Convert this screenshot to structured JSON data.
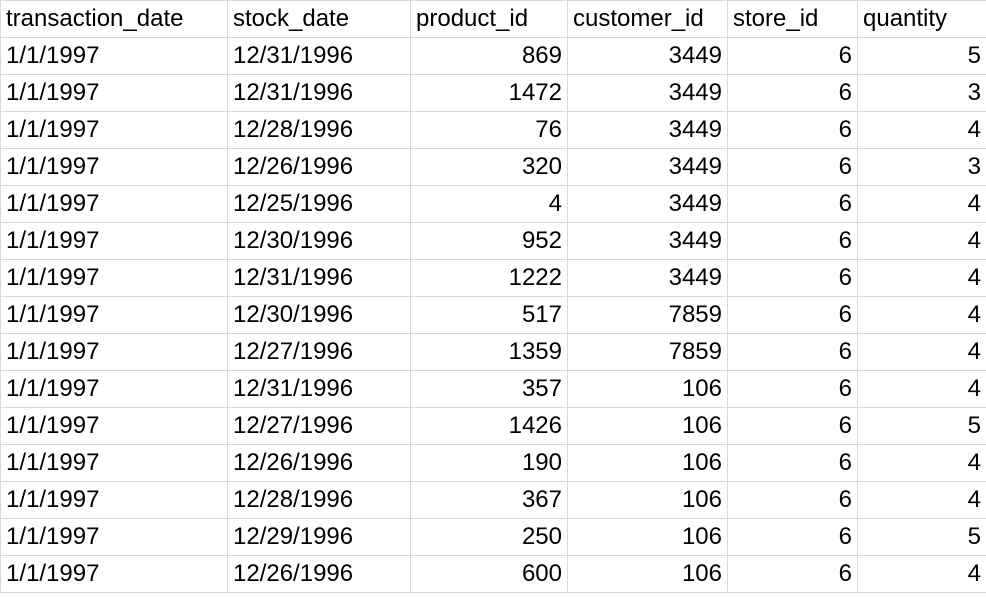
{
  "sheet": {
    "headers": [
      "transaction_date",
      "stock_date",
      "product_id",
      "customer_id",
      "store_id",
      "quantity"
    ],
    "rows": [
      [
        "1/1/1997",
        "12/31/1996",
        "869",
        "3449",
        "6",
        "5"
      ],
      [
        "1/1/1997",
        "12/31/1996",
        "1472",
        "3449",
        "6",
        "3"
      ],
      [
        "1/1/1997",
        "12/28/1996",
        "76",
        "3449",
        "6",
        "4"
      ],
      [
        "1/1/1997",
        "12/26/1996",
        "320",
        "3449",
        "6",
        "3"
      ],
      [
        "1/1/1997",
        "12/25/1996",
        "4",
        "3449",
        "6",
        "4"
      ],
      [
        "1/1/1997",
        "12/30/1996",
        "952",
        "3449",
        "6",
        "4"
      ],
      [
        "1/1/1997",
        "12/31/1996",
        "1222",
        "3449",
        "6",
        "4"
      ],
      [
        "1/1/1997",
        "12/30/1996",
        "517",
        "7859",
        "6",
        "4"
      ],
      [
        "1/1/1997",
        "12/27/1996",
        "1359",
        "7859",
        "6",
        "4"
      ],
      [
        "1/1/1997",
        "12/31/1996",
        "357",
        "106",
        "6",
        "4"
      ],
      [
        "1/1/1997",
        "12/27/1996",
        "1426",
        "106",
        "6",
        "5"
      ],
      [
        "1/1/1997",
        "12/26/1996",
        "190",
        "106",
        "6",
        "4"
      ],
      [
        "1/1/1997",
        "12/28/1996",
        "367",
        "106",
        "6",
        "4"
      ],
      [
        "1/1/1997",
        "12/29/1996",
        "250",
        "106",
        "6",
        "5"
      ],
      [
        "1/1/1997",
        "12/26/1996",
        "600",
        "106",
        "6",
        "4"
      ]
    ]
  }
}
